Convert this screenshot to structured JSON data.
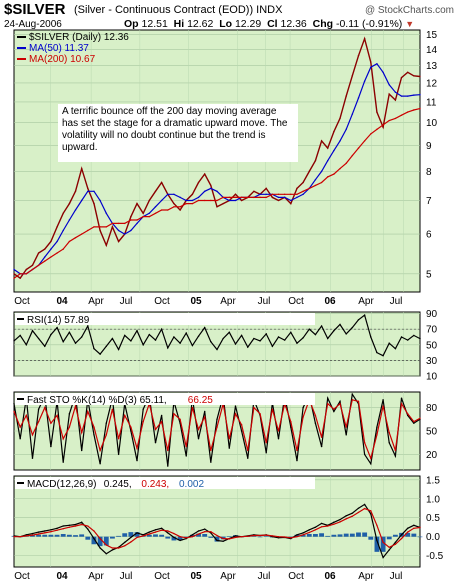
{
  "header": {
    "symbol": "$SILVER",
    "name": "(Silver - Continuous Contract (EOD))",
    "exchange": "INDX",
    "site": "@ StockCharts.com",
    "date": "24-Aug-2006",
    "open_label": "Op",
    "open": "12.51",
    "high_label": "Hi",
    "high": "12.62",
    "low_label": "Lo",
    "low": "12.29",
    "close_label": "Cl",
    "close": "12.36",
    "change_label": "Chg",
    "change": "-0.11 (-0.91%)"
  },
  "annotation": "A terrific bounce off the 200 day moving average has set the stage for a dramatic upward move. The volatility will no doubt continue but the trend is upward.",
  "colors": {
    "panel_bg": "#d8f0c8",
    "price": "#8b0000",
    "ma50": "#0000cc",
    "ma200": "#cc0000",
    "osc_line": "#000000",
    "stoch_d": "#cc0000",
    "macd_signal": "#cc0000",
    "macd_hist": "#1f5fa8"
  },
  "chart_data": [
    {
      "type": "line",
      "panel": "price",
      "legend": [
        {
          "label": "$SILVER (Daily) 12.36",
          "color": "#000000"
        },
        {
          "label": "MA(50) 11.37",
          "color": "#0000cc"
        },
        {
          "label": "MA(200) 10.67",
          "color": "#cc0000"
        }
      ],
      "x_ticks": [
        "Oct",
        "04",
        "Apr",
        "Jul",
        "Oct",
        "05",
        "Apr",
        "Jul",
        "Oct",
        "06",
        "Apr",
        "Jul"
      ],
      "y_ticks": [
        5,
        6,
        7,
        8,
        9,
        10,
        11,
        12,
        13,
        14,
        15
      ],
      "ylim": [
        4.6,
        15.3
      ],
      "log_scale": true,
      "grid": true,
      "series": [
        {
          "name": "$SILVER (Daily)",
          "values": [
            5.0,
            4.9,
            5.1,
            5.2,
            5.5,
            5.6,
            5.8,
            6.2,
            6.6,
            6.9,
            7.3,
            8.1,
            7.4,
            6.9,
            6.1,
            5.7,
            6.2,
            5.8,
            6.0,
            6.5,
            6.9,
            6.6,
            7.0,
            7.3,
            7.6,
            7.2,
            6.9,
            6.7,
            7.0,
            7.2,
            7.6,
            7.9,
            7.5,
            6.8,
            6.9,
            7.0,
            7.2,
            7.0,
            7.1,
            7.3,
            7.2,
            7.4,
            7.1,
            7.0,
            7.1,
            6.9,
            7.4,
            7.6,
            8.0,
            8.4,
            9.2,
            8.9,
            9.6,
            10.2,
            11.3,
            12.4,
            13.6,
            14.7,
            13.2,
            10.5,
            9.8,
            11.4,
            11.1,
            12.3,
            12.6,
            12.4,
            12.36
          ]
        },
        {
          "name": "MA(50)",
          "values": [
            5.1,
            5.0,
            5.0,
            5.1,
            5.2,
            5.4,
            5.6,
            5.8,
            6.1,
            6.4,
            6.7,
            7.0,
            7.3,
            7.3,
            7.0,
            6.6,
            6.3,
            6.1,
            6.0,
            6.1,
            6.3,
            6.5,
            6.6,
            6.8,
            7.0,
            7.2,
            7.2,
            7.1,
            7.0,
            7.0,
            7.1,
            7.3,
            7.4,
            7.3,
            7.1,
            7.0,
            7.0,
            7.1,
            7.1,
            7.1,
            7.2,
            7.2,
            7.2,
            7.1,
            7.1,
            7.0,
            7.1,
            7.2,
            7.4,
            7.7,
            8.0,
            8.4,
            8.8,
            9.2,
            9.7,
            10.4,
            11.2,
            12.1,
            12.9,
            13.1,
            12.6,
            11.9,
            11.5,
            11.3,
            11.3,
            11.35,
            11.37
          ]
        },
        {
          "name": "MA(200)",
          "values": [
            4.9,
            5.0,
            5.0,
            5.1,
            5.2,
            5.3,
            5.4,
            5.5,
            5.6,
            5.8,
            5.9,
            6.0,
            6.1,
            6.2,
            6.2,
            6.2,
            6.3,
            6.3,
            6.3,
            6.4,
            6.4,
            6.5,
            6.5,
            6.6,
            6.7,
            6.7,
            6.8,
            6.8,
            6.9,
            6.9,
            7.0,
            7.0,
            7.0,
            7.0,
            7.1,
            7.1,
            7.1,
            7.1,
            7.1,
            7.1,
            7.1,
            7.1,
            7.2,
            7.2,
            7.2,
            7.2,
            7.2,
            7.3,
            7.4,
            7.5,
            7.6,
            7.8,
            7.9,
            8.1,
            8.3,
            8.6,
            8.9,
            9.2,
            9.5,
            9.7,
            9.9,
            10.1,
            10.2,
            10.35,
            10.5,
            10.6,
            10.67
          ]
        }
      ]
    },
    {
      "type": "line",
      "panel": "rsi",
      "legend": [
        {
          "label": "RSI(14) 57.89",
          "color": "#000000"
        }
      ],
      "y_ticks": [
        10,
        30,
        50,
        70,
        90
      ],
      "ylim": [
        10,
        92
      ],
      "reference_lines": [
        30,
        70
      ],
      "series": [
        {
          "name": "RSI(14)",
          "values": [
            55,
            62,
            50,
            68,
            58,
            48,
            63,
            72,
            54,
            66,
            52,
            60,
            74,
            45,
            38,
            48,
            58,
            44,
            62,
            55,
            68,
            50,
            63,
            56,
            70,
            46,
            60,
            52,
            65,
            49,
            61,
            72,
            54,
            44,
            58,
            66,
            51,
            62,
            47,
            58,
            55,
            64,
            48,
            60,
            56,
            66,
            52,
            59,
            70,
            63,
            74,
            58,
            68,
            76,
            64,
            72,
            82,
            88,
            60,
            40,
            36,
            52,
            45,
            60,
            56,
            62,
            57.89
          ]
        }
      ]
    },
    {
      "type": "line",
      "panel": "stochastic",
      "legend": [
        {
          "label": "Fast STO %K(14) %D(3) 65.11,",
          "color": "#000000"
        },
        {
          "label": "66.25",
          "color": "#cc0000"
        }
      ],
      "y_ticks": [
        20,
        50,
        80
      ],
      "ylim": [
        0,
        100
      ],
      "series": [
        {
          "name": "%K(14)",
          "values": [
            85,
            40,
            92,
            15,
            78,
            95,
            30,
            88,
            10,
            72,
            96,
            25,
            90,
            45,
            8,
            60,
            92,
            20,
            85,
            50,
            12,
            78,
            95,
            35,
            70,
            5,
            88,
            60,
            18,
            92,
            40,
            75,
            10,
            65,
            95,
            28,
            82,
            50,
            15,
            90,
            70,
            22,
            86,
            40,
            95,
            55,
            12,
            80,
            96,
            60,
            30,
            92,
            75,
            88,
            45,
            97,
            85,
            20,
            8,
            55,
            90,
            35,
            18,
            92,
            70,
            60,
            65.11
          ]
        },
        {
          "name": "%D(3)",
          "values": [
            75,
            55,
            70,
            45,
            62,
            80,
            60,
            70,
            40,
            55,
            82,
            48,
            75,
            55,
            25,
            45,
            78,
            40,
            70,
            55,
            28,
            62,
            85,
            52,
            62,
            25,
            72,
            65,
            30,
            80,
            52,
            68,
            25,
            55,
            85,
            40,
            72,
            58,
            25,
            80,
            72,
            35,
            78,
            50,
            85,
            62,
            25,
            68,
            90,
            70,
            42,
            85,
            78,
            85,
            55,
            90,
            88,
            35,
            15,
            45,
            82,
            48,
            25,
            85,
            72,
            62,
            66.25
          ]
        }
      ]
    },
    {
      "type": "line",
      "panel": "macd",
      "legend": [
        {
          "label": "MACD(12,26,9)",
          "color": "#000000"
        },
        {
          "label": "0.245,",
          "color": "#000000"
        },
        {
          "label": "0.243,",
          "color": "#cc0000"
        },
        {
          "label": "0.002",
          "color": "#1f5fa8"
        }
      ],
      "y_ticks": [
        -0.5,
        0.0,
        0.5,
        1.0,
        1.5
      ],
      "ylim": [
        -0.8,
        1.6
      ],
      "x_ticks": [
        "Oct",
        "04",
        "Apr",
        "Jul",
        "Oct",
        "05",
        "Apr",
        "Jul",
        "Oct",
        "06",
        "Apr",
        "Jul"
      ],
      "series": [
        {
          "name": "MACD",
          "values": [
            0.02,
            0.0,
            0.05,
            0.08,
            0.12,
            0.15,
            0.18,
            0.22,
            0.28,
            0.3,
            0.32,
            0.38,
            0.2,
            -0.05,
            -0.3,
            -0.45,
            -0.35,
            -0.28,
            -0.15,
            -0.02,
            0.1,
            0.05,
            0.12,
            0.18,
            0.22,
            0.1,
            -0.02,
            -0.1,
            -0.05,
            0.05,
            0.15,
            0.2,
            0.1,
            -0.1,
            -0.12,
            -0.05,
            0.02,
            0.0,
            0.02,
            0.05,
            0.03,
            0.05,
            0.0,
            -0.03,
            -0.02,
            -0.05,
            0.05,
            0.1,
            0.18,
            0.25,
            0.35,
            0.3,
            0.38,
            0.45,
            0.55,
            0.62,
            0.75,
            0.85,
            0.6,
            -0.1,
            -0.55,
            -0.35,
            -0.15,
            0.05,
            0.22,
            0.3,
            0.245
          ]
        },
        {
          "name": "Signal",
          "values": [
            0.0,
            0.0,
            0.02,
            0.04,
            0.07,
            0.1,
            0.13,
            0.17,
            0.21,
            0.25,
            0.28,
            0.32,
            0.28,
            0.15,
            -0.05,
            -0.22,
            -0.3,
            -0.3,
            -0.24,
            -0.14,
            -0.02,
            0.02,
            0.07,
            0.12,
            0.17,
            0.15,
            0.08,
            0.0,
            -0.03,
            0.0,
            0.07,
            0.13,
            0.13,
            0.03,
            -0.05,
            -0.06,
            -0.02,
            0.0,
            0.01,
            0.03,
            0.03,
            0.04,
            0.02,
            0.0,
            -0.01,
            -0.03,
            0.0,
            0.05,
            0.11,
            0.18,
            0.26,
            0.28,
            0.33,
            0.39,
            0.47,
            0.54,
            0.64,
            0.74,
            0.68,
            0.3,
            -0.15,
            -0.28,
            -0.2,
            -0.05,
            0.12,
            0.22,
            0.243
          ]
        }
      ],
      "histogram": {
        "name": "Histogram",
        "values": [
          0.02,
          0.0,
          0.03,
          0.04,
          0.05,
          0.05,
          0.05,
          0.05,
          0.07,
          0.05,
          0.04,
          0.06,
          -0.08,
          -0.2,
          -0.25,
          -0.23,
          -0.05,
          0.02,
          0.09,
          0.12,
          0.12,
          0.03,
          0.05,
          0.06,
          0.05,
          -0.05,
          -0.1,
          -0.1,
          -0.02,
          0.05,
          0.08,
          0.07,
          -0.03,
          -0.13,
          -0.07,
          0.01,
          0.04,
          0.0,
          0.01,
          0.02,
          0.0,
          0.01,
          -0.02,
          -0.03,
          -0.01,
          -0.02,
          0.05,
          0.05,
          0.07,
          0.07,
          0.09,
          0.02,
          0.05,
          0.06,
          0.08,
          0.08,
          0.11,
          0.11,
          -0.08,
          -0.4,
          -0.4,
          -0.07,
          0.05,
          0.1,
          0.1,
          0.08,
          0.002
        ]
      }
    }
  ]
}
